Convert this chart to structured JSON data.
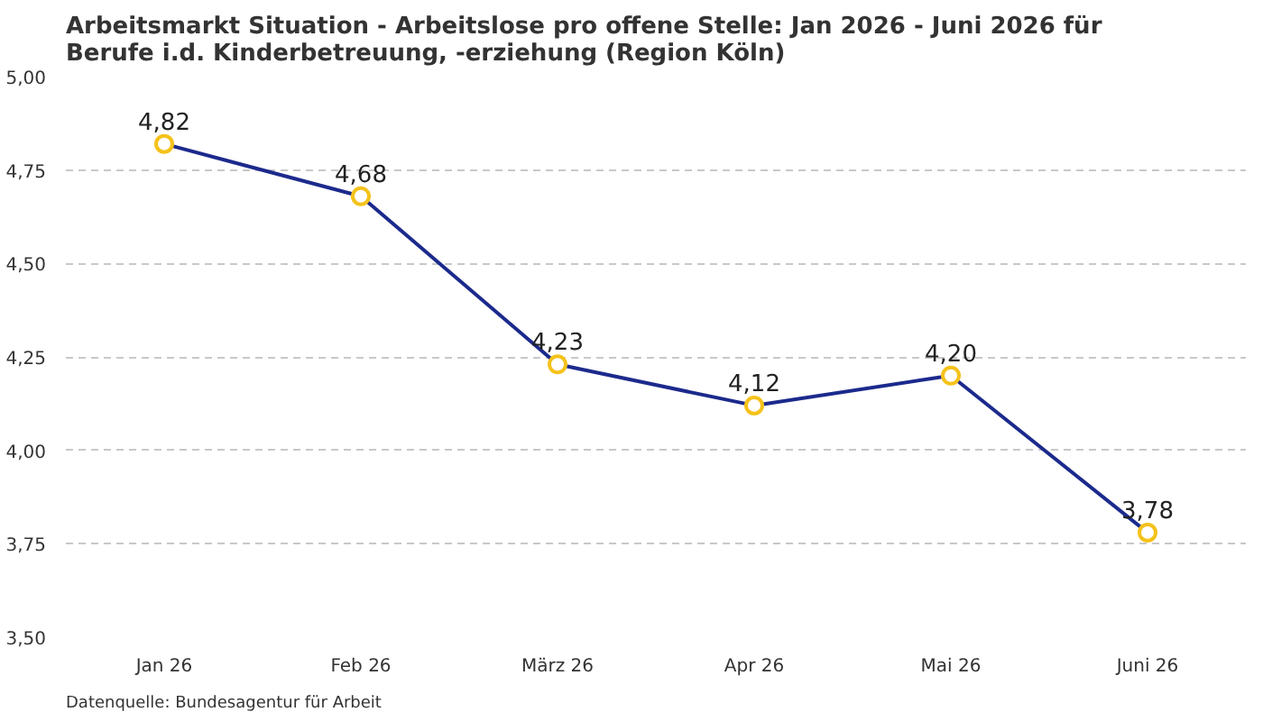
{
  "chart_data": {
    "type": "line",
    "title": "Arbeitsmarkt Situation - Arbeitslose pro offene Stelle: Jan 2026 - Juni 2026 für\nBerufe i.d. Kinderbetreuung, -erziehung (Region Köln)",
    "categories": [
      "Jan 26",
      "Feb 26",
      "März 26",
      "Apr 26",
      "Mai 26",
      "Juni 26"
    ],
    "series": [
      {
        "color": "#1c2a8c",
        "values": [
          4.82,
          4.68,
          4.23,
          4.12,
          4.2,
          3.78
        ],
        "value_labels": [
          "4,82",
          "4,68",
          "4,23",
          "4,12",
          "4,20",
          "3,78"
        ]
      }
    ],
    "ylim": [
      3.5,
      5.0
    ],
    "yticks": [
      {
        "value": 3.5,
        "label": "3,50"
      },
      {
        "value": 3.75,
        "label": "3,75"
      },
      {
        "value": 4.0,
        "label": "4,00"
      },
      {
        "value": 4.25,
        "label": "4,25"
      },
      {
        "value": 4.5,
        "label": "4,50"
      },
      {
        "value": 4.75,
        "label": "4,75"
      },
      {
        "value": 5.0,
        "label": "5,00"
      }
    ],
    "grid": "y",
    "marker": "circle",
    "annotations": [
      "Datenquelle: Bundesagentur für Arbeit"
    ]
  }
}
